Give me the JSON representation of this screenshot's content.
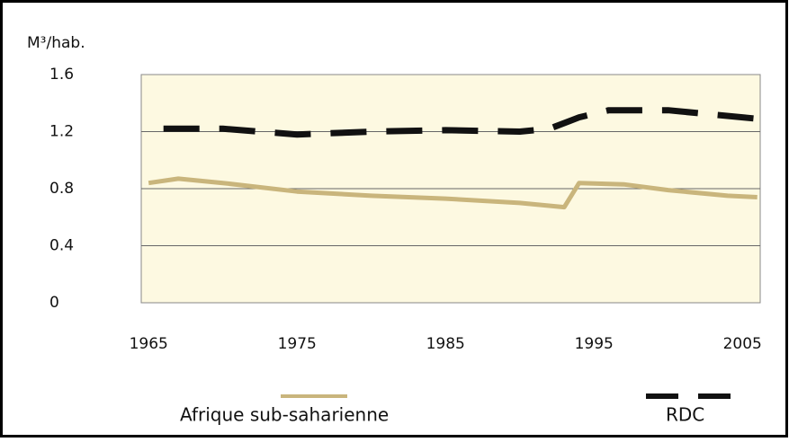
{
  "chart_data": {
    "type": "line",
    "y_label": "M³/hab.",
    "xlim": [
      1964.5,
      2006.2
    ],
    "xticks": [
      1965,
      1975,
      1985,
      1995,
      2005
    ],
    "ylim": [
      0,
      1.6
    ],
    "yticks": [
      0,
      0.4,
      0.8,
      1.2,
      1.6
    ],
    "grid": true,
    "legend": "bottom",
    "series": [
      {
        "name": "Afrique sub-saharienne",
        "color": "#c9b57c",
        "dash": false,
        "x": [
          1965,
          1967,
          1970,
          1975,
          1980,
          1985,
          1990,
          1993,
          1994,
          1997,
          2000,
          2004,
          2006
        ],
        "values": [
          0.84,
          0.87,
          0.84,
          0.78,
          0.75,
          0.73,
          0.7,
          0.67,
          0.84,
          0.83,
          0.79,
          0.75,
          0.74
        ]
      },
      {
        "name": "RDC",
        "color": "#111111",
        "dash": true,
        "x": [
          1966,
          1970,
          1975,
          1980,
          1985,
          1990,
          1992,
          1994,
          1996,
          2000,
          2003,
          2006
        ],
        "values": [
          1.22,
          1.22,
          1.18,
          1.2,
          1.21,
          1.2,
          1.22,
          1.3,
          1.35,
          1.35,
          1.32,
          1.29
        ]
      }
    ]
  }
}
